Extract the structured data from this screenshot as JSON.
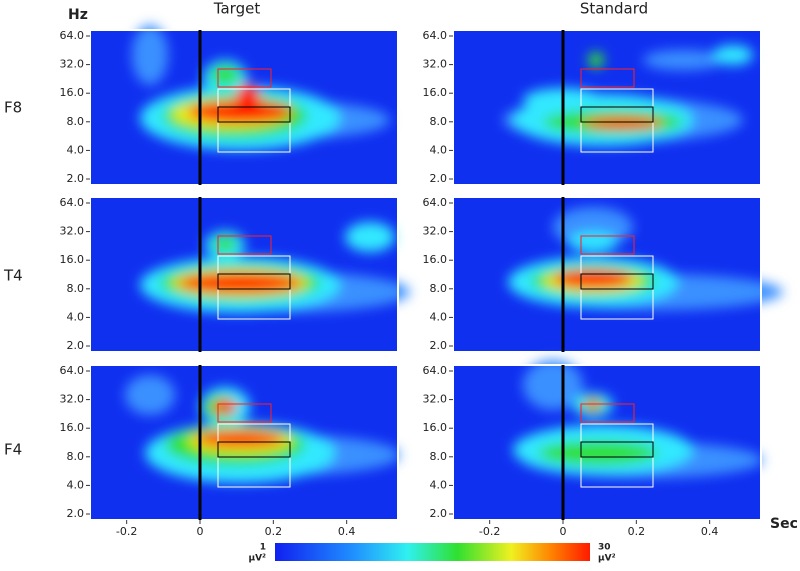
{
  "columns": [
    "Target",
    "Standard"
  ],
  "rows": [
    "F8",
    "T4",
    "F4"
  ],
  "y_axis": {
    "label": "Hz",
    "scale": "log",
    "lim": [
      1.73,
      74
    ],
    "ticks": [
      {
        "value": 64,
        "label": "64.0"
      },
      {
        "value": 32,
        "label": "32.0"
      },
      {
        "value": 16,
        "label": "16.0"
      },
      {
        "value": 8,
        "label": "8.0"
      },
      {
        "value": 4,
        "label": "4.0"
      },
      {
        "value": 2,
        "label": "2.0"
      }
    ]
  },
  "x_axis": {
    "label": "Sec",
    "lim": [
      -0.3,
      0.54
    ],
    "ticks": [
      -0.2,
      0,
      0.2,
      0.4
    ]
  },
  "colorbar": {
    "min": 1,
    "max": 30,
    "unit": "µV²"
  }
}
